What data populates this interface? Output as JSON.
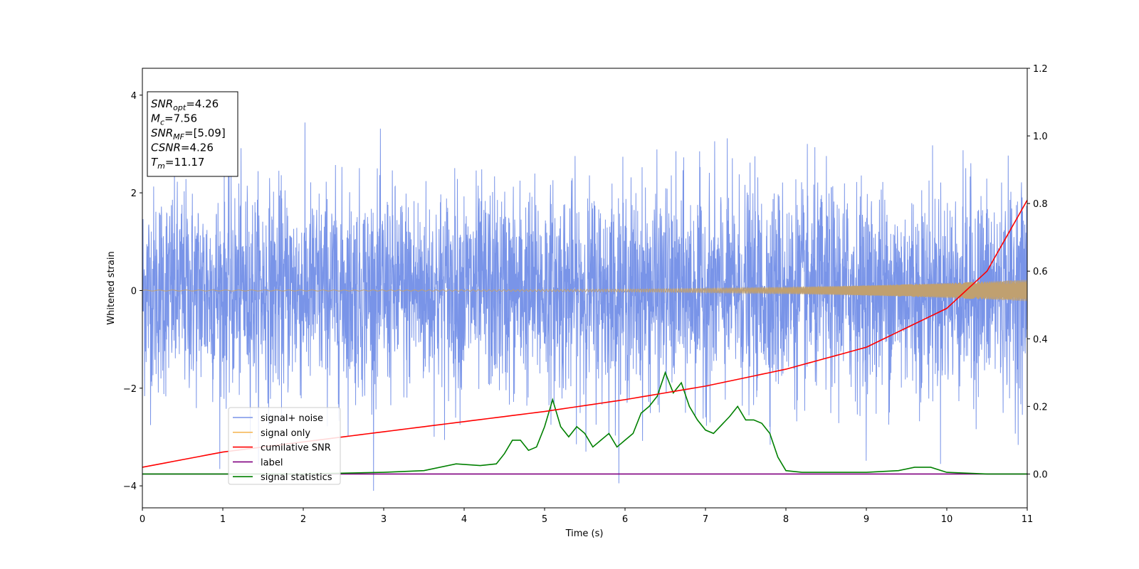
{
  "chart_data": {
    "type": "line",
    "xlabel": "Time (s)",
    "ylabel": "Whitened strain",
    "xlim": [
      0,
      11
    ],
    "ylim_left": [
      -4.45,
      4.55
    ],
    "ylim_right": [
      -0.1,
      1.2
    ],
    "x_ticks": [
      "0",
      "1",
      "2",
      "3",
      "4",
      "5",
      "6",
      "7",
      "8",
      "9",
      "10",
      "11"
    ],
    "y_ticks_left": [
      "−4",
      "−2",
      "0",
      "2",
      "4"
    ],
    "y_ticks_right": [
      "0.0",
      "0.2",
      "0.4",
      "0.6",
      "0.8",
      "1.0",
      "1.2"
    ],
    "legend_location": "lower-left",
    "annotation": {
      "lines": [
        {
          "symbol": "SNR",
          "subscript": "opt",
          "value": "=4.26"
        },
        {
          "symbol": "M",
          "subscript": "c",
          "value": "=7.56"
        },
        {
          "symbol": "SNR",
          "subscript": "MF",
          "value": "=[5.09]"
        },
        {
          "symbol": "CSNR",
          "subscript": "",
          "value": "=4.26"
        },
        {
          "symbol": "T",
          "subscript": "m",
          "value": "=11.17"
        }
      ]
    },
    "series": [
      {
        "name": "signal+ noise",
        "axis": "left",
        "color": "#7994e8",
        "style": "noise",
        "std": 1.0
      },
      {
        "name": "signal only",
        "axis": "left",
        "color": "#f5b85a",
        "style": "chirp",
        "amp_start": 0.01,
        "amp_end": 0.22
      },
      {
        "name": "cumilative SNR",
        "axis": "right",
        "color": "#ff0000",
        "x": [
          0,
          1,
          2,
          3,
          4,
          5,
          6,
          7,
          8,
          9,
          10,
          10.5,
          11
        ],
        "y": [
          0.02,
          0.065,
          0.095,
          0.125,
          0.155,
          0.185,
          0.22,
          0.26,
          0.31,
          0.375,
          0.49,
          0.6,
          0.81
        ]
      },
      {
        "name": "label",
        "axis": "right",
        "color": "#800080",
        "x": [
          0,
          11
        ],
        "y": [
          0.0,
          0.0
        ]
      },
      {
        "name": "signal statistics",
        "axis": "right",
        "color": "#008000",
        "x": [
          0,
          1,
          2,
          3,
          3.5,
          3.9,
          4.2,
          4.4,
          4.5,
          4.6,
          4.7,
          4.8,
          4.9,
          5.0,
          5.1,
          5.2,
          5.3,
          5.4,
          5.5,
          5.6,
          5.7,
          5.8,
          5.9,
          6.0,
          6.1,
          6.2,
          6.3,
          6.4,
          6.5,
          6.6,
          6.7,
          6.8,
          6.9,
          7.0,
          7.1,
          7.3,
          7.4,
          7.5,
          7.6,
          7.7,
          7.8,
          7.9,
          8.0,
          8.2,
          8.5,
          9.0,
          9.4,
          9.6,
          9.8,
          10.0,
          10.5,
          11.0
        ],
        "y": [
          0.0,
          0.0,
          0.0,
          0.005,
          0.01,
          0.03,
          0.025,
          0.03,
          0.06,
          0.1,
          0.1,
          0.07,
          0.08,
          0.14,
          0.22,
          0.14,
          0.11,
          0.14,
          0.12,
          0.08,
          0.1,
          0.12,
          0.08,
          0.1,
          0.12,
          0.18,
          0.2,
          0.23,
          0.3,
          0.24,
          0.27,
          0.2,
          0.16,
          0.13,
          0.12,
          0.17,
          0.2,
          0.16,
          0.16,
          0.15,
          0.12,
          0.05,
          0.01,
          0.005,
          0.005,
          0.005,
          0.01,
          0.02,
          0.02,
          0.005,
          0.0,
          0.0
        ]
      }
    ]
  }
}
